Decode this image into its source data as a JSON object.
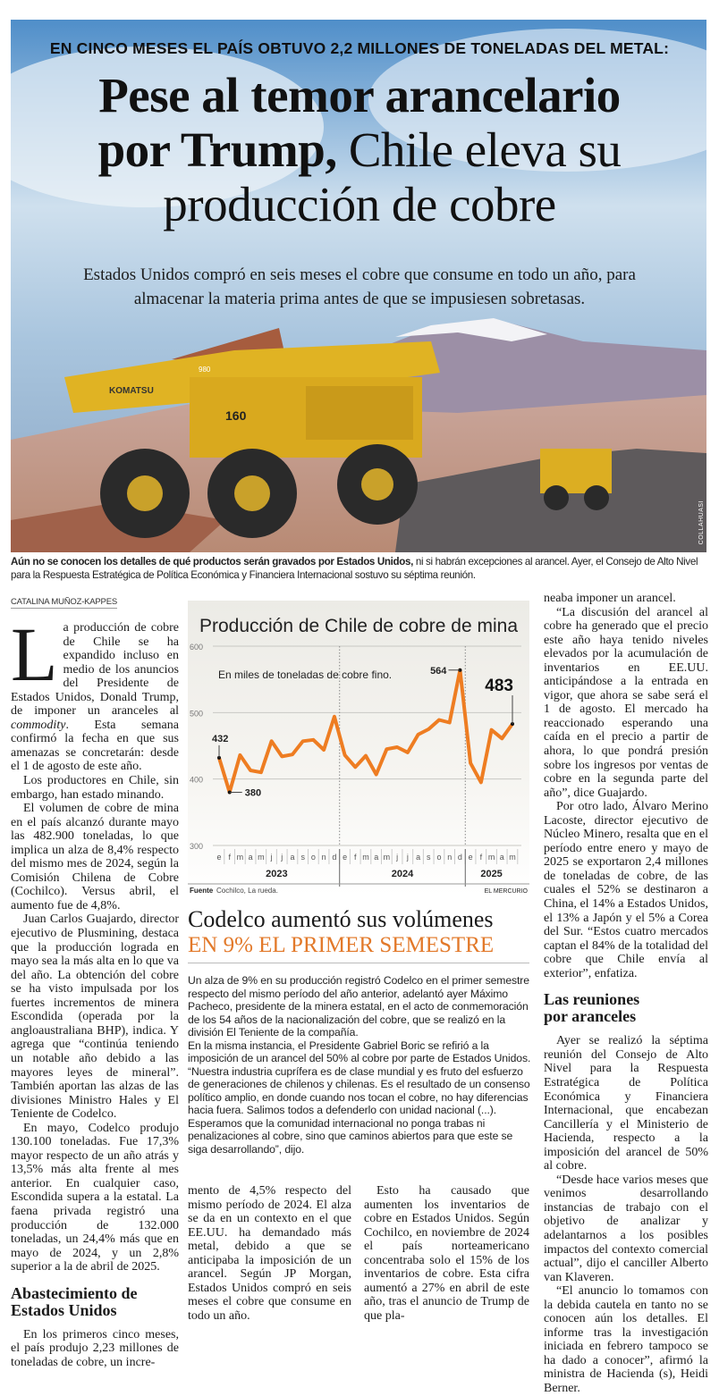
{
  "kicker": "EN CINCO MESES EL PAÍS OBTUVO 2,2 MILLONES DE TONELADAS DEL METAL:",
  "headline": {
    "bold_line1": "Pese al temor arancelario",
    "bold_line2": "por Trump,",
    "regular_line2": " Chile eleva su",
    "regular_line3": "producción de cobre"
  },
  "subtitle": "Estados Unidos compró en seis meses el cobre que consume en todo un año, para almacenar la materia prima antes de que se impusiesen sobretasas.",
  "photo": {
    "credit": "COLLAHUASI",
    "truck_labels": [
      "KOMATSU",
      "160",
      "980",
      "60"
    ]
  },
  "caption": {
    "bold": "Aún no se conocen los detalles de qué productos serán gravados por Estados Unidos,",
    "rest": " ni si habrán excepciones al arancel. Ayer, el Consejo de Alto Nivel para la Respuesta Estratégica de Política Económica y Financiera Internacional sostuvo su séptima reunión."
  },
  "byline": "CATALINA MUÑOZ-KAPPES",
  "col1": {
    "drop_cap": "L",
    "p1_start": "a producción de cobre de Chile se ha expandido incluso en medio de los anuncios del Presidente de Estados Unidos, Donald Trump, de imponer un aranceles al ",
    "p1_italic": "commodity",
    "p1_end": ". Esta semana confirmó la fecha en que sus amenazas se concretarán: desde el 1 de agosto de este año.",
    "paragraphs": [
      "Los productores en Chile, sin embargo, han estado minando.",
      "El volumen de cobre de mina en el país alcanzó durante mayo las 482.900 toneladas, lo que implica un alza de 8,4% respecto del mismo mes de 2024, según la Comisión Chilena de Cobre (Cochilco). Versus abril, el aumento fue de 4,8%.",
      "Juan Carlos Guajardo, director ejecutivo de Plusmining, destaca que la producción lograda en mayo sea la más alta en lo que va del año. La obtención del cobre se ha visto impulsada por los fuertes incrementos de minera Escondida (operada por la angloaustraliana BHP), indica. Y agrega que “continúa teniendo un notable año debido a las mayores leyes de mineral”. También aportan las alzas de las divisiones Ministro Hales y El Teniente de Codelco.",
      "En mayo, Codelco produjo 130.100 toneladas. Fue 17,3% mayor respecto de un año atrás y 13,5% más alta frente al mes anterior. En cualquier caso, Escondida supera a la estatal. La faena privada registró una producción de 132.000 toneladas, un 24,4% más que en mayo de 2024, y un 2,8% superior a la de abril de 2025."
    ],
    "heading": "Abastecimiento de Estados Unidos",
    "after_heading": "En los primeros cinco meses, el país produjo 2,23 millones de toneladas de cobre, un incre-"
  },
  "chart_data": {
    "type": "line",
    "title": "Producción de Chile de cobre de mina",
    "annotation": "En miles de toneladas de cobre fino.",
    "months": [
      "e",
      "f",
      "m",
      "a",
      "m",
      "j",
      "j",
      "a",
      "s",
      "o",
      "n",
      "d",
      "e",
      "f",
      "m",
      "a",
      "m",
      "j",
      "j",
      "a",
      "s",
      "o",
      "n",
      "d",
      "e",
      "f",
      "m",
      "a",
      "m"
    ],
    "years": [
      "2023",
      "2024",
      "2025"
    ],
    "values": [
      432,
      380,
      436,
      413,
      410,
      457,
      434,
      437,
      457,
      459,
      444,
      494,
      436,
      418,
      435,
      407,
      445,
      448,
      440,
      467,
      475,
      489,
      485,
      564,
      424,
      395,
      474,
      461,
      483
    ],
    "labeled_points": [
      {
        "label": "432"
      },
      {
        "label": "380"
      },
      {
        "label": "564"
      },
      {
        "label": "483"
      }
    ],
    "yticks": [
      "600",
      "500",
      "400",
      "300"
    ],
    "ylim": [
      300,
      600
    ],
    "grid": true,
    "line_color": "#ee7d22",
    "source_label": "Fuente",
    "source": "Cochilco, La rueda.",
    "brand": "EL MERCURIO"
  },
  "codelco": {
    "title_line1": "Codelco aumentó sus volúmenes",
    "title_line2": "EN 9% EL PRIMER SEMESTRE",
    "accent_color": "#e2792a",
    "paragraphs": [
      "Un alza de 9% en su producción registró Codelco en el primer semestre respecto del mismo período del año anterior, adelantó ayer Máximo Pacheco, presidente de la minera estatal, en el acto de conmemoración de los 54 años de la nacionalización del cobre, que se realizó en la división El Teniente de la compañía.",
      "En la misma instancia, el Presidente Gabriel Boric se refirió a la imposición de un arancel del 50% al cobre por parte de Estados Unidos. “Nuestra industria cuprífera es de clase mundial y es fruto del esfuerzo de generaciones de chilenos y chilenas. Es el resultado de un consenso político amplio, en donde cuando nos tocan el cobre, no hay diferencias hacia fuera. Salimos todos a defenderlo con unidad nacional (...). Esperamos que la comunidad internacional no ponga trabas ni penalizaciones al cobre, sino que caminos abiertos para que este se siga desarrollando”, dijo."
    ]
  },
  "col2": "mento de 4,5% respecto del mismo período de 2024. El alza se da en un contexto en el que EE.UU. ha demandado más metal, debido a que se anticipaba la imposición de un arancel. Según JP Morgan, Estados Unidos compró en seis meses el cobre que consume en todo un año.",
  "col3": "Esto ha causado que aumenten los inventarios de cobre en Estados Unidos. Según Cochilco, en noviembre de 2024 el país norteamericano concentraba solo el 15% de los inventarios de cobre. Esta cifra aumentó a 27% en abril de este año, tras el anuncio de Trump de que pla-",
  "col4": {
    "first": "neaba imponer un arancel.",
    "paragraphs": [
      "“La discusión del arancel al cobre ha generado que el precio este año haya tenido niveles elevados por la acumulación de inventarios en EE.UU. anticipándose a la entrada en vigor, que ahora se sabe será el 1 de agosto. El mercado ha reaccionado esperando una caída en el precio a partir de ahora, lo que pondrá presión sobre los ingresos por ventas de cobre en la segunda parte del año”, dice Guajardo.",
      "Por otro lado, Álvaro Merino Lacoste, director ejecutivo de Núcleo Minero, resalta que en el período entre enero y mayo de 2025 se exportaron 2,4 millones de toneladas de cobre, de las cuales el 52% se destinaron a China, el 14% a Estados Unidos, el 13% a Japón y el 5% a Corea del Sur. “Estos cuatro mercados captan el 84% de la totalidad del cobre que Chile envía al exterior”, enfatiza."
    ],
    "heading": "Las reuniones por aranceles",
    "paragraphs2": [
      "Ayer se realizó la séptima reunión del Consejo de Alto Nivel para la Respuesta Estratégica de Política Económica y Financiera Internacional, que encabezan Cancillería y el Ministerio de Hacienda, respecto a la imposición del arancel de 50% al cobre.",
      "“Desde hace varios meses que venimos desarrollando instancias de trabajo con el objetivo de analizar y adelantarnos a los posibles impactos del contexto comercial actual”, dijo el canciller Alberto van Klaveren.",
      "“El anuncio lo tomamos con la debida cautela en tanto no se conocen aún los detalles. El informe tras la investigación iniciada en febrero tampoco se ha dado a conocer”, afirmó la ministra de Hacienda (s), Heidi Berner."
    ]
  }
}
